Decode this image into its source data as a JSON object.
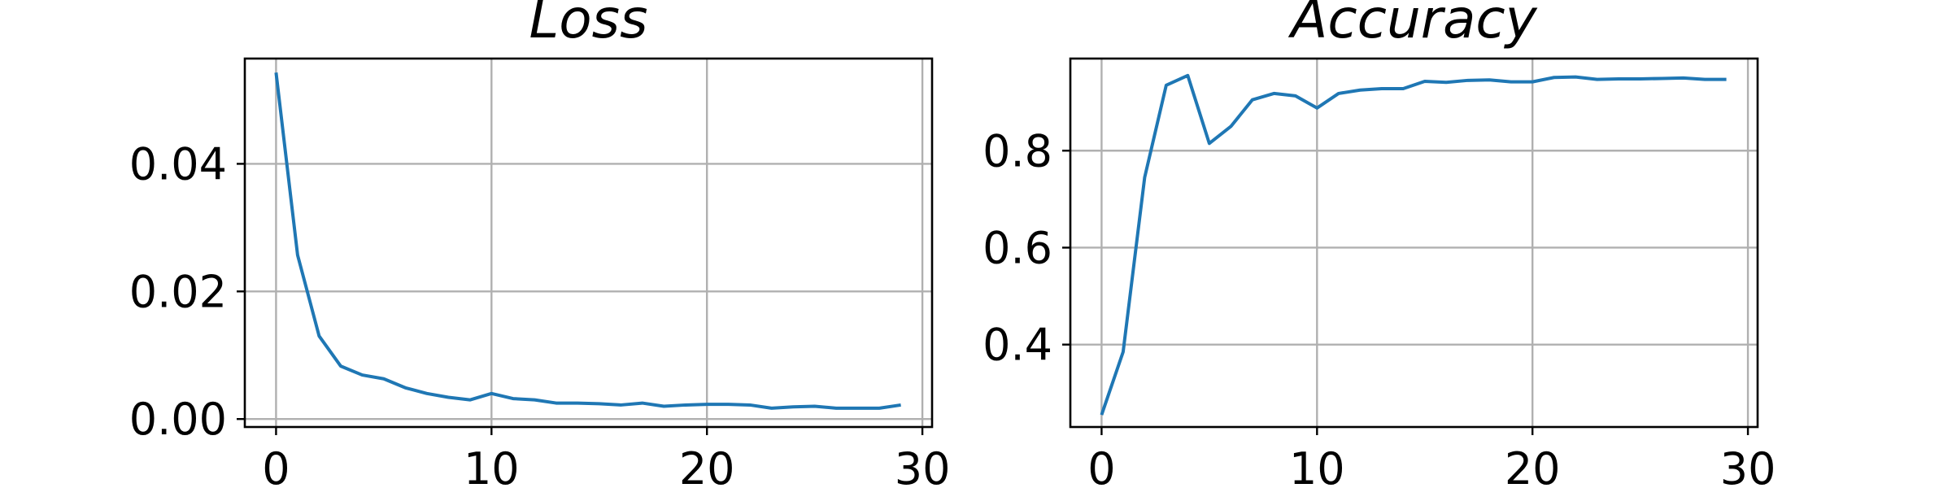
{
  "colors": {
    "series": "#1f77b4",
    "grid": "#b0b0b0"
  },
  "chart_data": [
    {
      "type": "line",
      "title": "Loss",
      "xlabel": "",
      "ylabel": "",
      "grid": true,
      "xlim": [
        -1.45,
        30.45
      ],
      "ylim": [
        -0.00125,
        0.0565
      ],
      "xticks": [
        0,
        10,
        20,
        30
      ],
      "xtick_labels": [
        "0",
        "10",
        "20",
        "30"
      ],
      "yticks": [
        0,
        0.02,
        0.04
      ],
      "ytick_labels": [
        "0.00",
        "0.02",
        "0.04"
      ],
      "x": [
        0,
        1,
        2,
        3,
        4,
        5,
        6,
        7,
        8,
        9,
        10,
        11,
        12,
        13,
        14,
        15,
        16,
        17,
        18,
        19,
        20,
        21,
        22,
        23,
        24,
        25,
        26,
        27,
        28,
        29
      ],
      "series": [
        {
          "values": [
            0.0543,
            0.0257,
            0.013,
            0.0083,
            0.0069,
            0.0063,
            0.0049,
            0.004,
            0.0034,
            0.003,
            0.004,
            0.0032,
            0.003,
            0.0025,
            0.0025,
            0.0024,
            0.0022,
            0.0025,
            0.002,
            0.0022,
            0.0023,
            0.0023,
            0.0022,
            0.0017,
            0.0019,
            0.002,
            0.0017,
            0.0017,
            0.0017,
            0.0022
          ]
        }
      ]
    },
    {
      "type": "line",
      "title": "Accuracy",
      "xlabel": "",
      "ylabel": "",
      "grid": true,
      "xlim": [
        -1.45,
        30.45
      ],
      "ylim": [
        0.23,
        0.99
      ],
      "xticks": [
        0,
        10,
        20,
        30
      ],
      "xtick_labels": [
        "0",
        "10",
        "20",
        "30"
      ],
      "yticks": [
        0.4,
        0.6,
        0.8
      ],
      "ytick_labels": [
        "0.4",
        "0.6",
        "0.8"
      ],
      "x": [
        0,
        1,
        2,
        3,
        4,
        5,
        6,
        7,
        8,
        9,
        10,
        11,
        12,
        13,
        14,
        15,
        16,
        17,
        18,
        19,
        20,
        21,
        22,
        23,
        24,
        25,
        26,
        27,
        28,
        29
      ],
      "series": [
        {
          "values": [
            0.255,
            0.385,
            0.745,
            0.935,
            0.955,
            0.815,
            0.85,
            0.905,
            0.918,
            0.913,
            0.888,
            0.918,
            0.925,
            0.928,
            0.928,
            0.943,
            0.941,
            0.945,
            0.946,
            0.942,
            0.942,
            0.951,
            0.952,
            0.947,
            0.948,
            0.948,
            0.949,
            0.95,
            0.947,
            0.947
          ]
        }
      ]
    }
  ]
}
